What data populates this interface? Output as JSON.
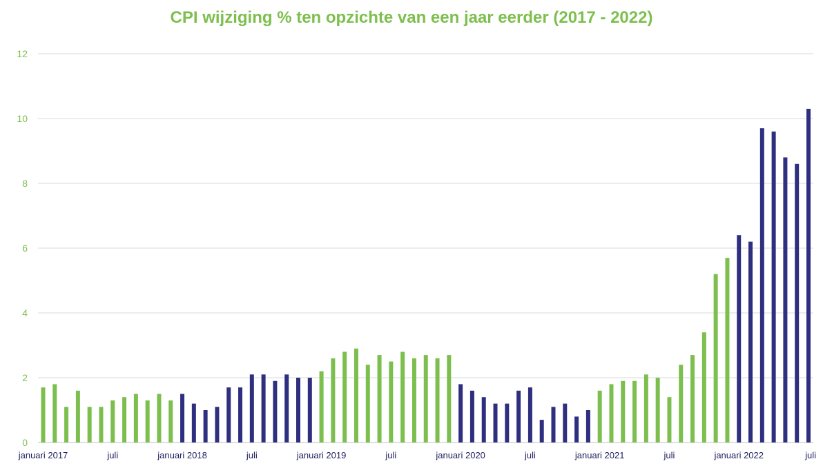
{
  "chart_data": {
    "type": "bar",
    "title": "CPI wijziging % ten opzichte van een jaar eerder (2017 - 2022)",
    "xlabel": "",
    "ylabel": "",
    "ylim": [
      0,
      12
    ],
    "yticks": [
      0,
      2,
      4,
      6,
      8,
      10,
      12
    ],
    "grid": true,
    "legend": "none",
    "colors": {
      "green": "#7dbf4e",
      "navy": "#2e2f7f",
      "grid": "#d9d9d9"
    },
    "x_tick_labels": [
      {
        "index": 0,
        "label": "januari 2017"
      },
      {
        "index": 6,
        "label": "juli"
      },
      {
        "index": 12,
        "label": "januari 2018"
      },
      {
        "index": 18,
        "label": "juli"
      },
      {
        "index": 24,
        "label": "januari 2019"
      },
      {
        "index": 30,
        "label": "juli"
      },
      {
        "index": 36,
        "label": "januari 2020"
      },
      {
        "index": 42,
        "label": "juli"
      },
      {
        "index": 48,
        "label": "januari 2021"
      },
      {
        "index": 54,
        "label": "juli"
      },
      {
        "index": 60,
        "label": "januari 2022"
      },
      {
        "index": 66,
        "label": "juli"
      }
    ],
    "values": [
      1.7,
      1.8,
      1.1,
      1.6,
      1.1,
      1.1,
      1.3,
      1.4,
      1.5,
      1.3,
      1.5,
      1.3,
      1.5,
      1.2,
      1.0,
      1.1,
      1.7,
      1.7,
      2.1,
      2.1,
      1.9,
      2.1,
      2.0,
      2.0,
      2.2,
      2.6,
      2.8,
      2.9,
      2.4,
      2.7,
      2.5,
      2.8,
      2.6,
      2.7,
      2.6,
      2.7,
      1.8,
      1.6,
      1.4,
      1.2,
      1.2,
      1.6,
      1.7,
      0.7,
      1.1,
      1.2,
      0.8,
      1.0,
      1.6,
      1.8,
      1.9,
      1.9,
      2.1,
      2.0,
      1.4,
      2.4,
      2.7,
      3.4,
      5.2,
      5.7,
      6.4,
      6.2,
      9.7,
      9.6,
      8.8,
      8.6,
      10.3
    ],
    "bar_colors": [
      "green",
      "green",
      "green",
      "green",
      "green",
      "green",
      "green",
      "green",
      "green",
      "green",
      "green",
      "green",
      "navy",
      "navy",
      "navy",
      "navy",
      "navy",
      "navy",
      "navy",
      "navy",
      "navy",
      "navy",
      "navy",
      "navy",
      "green",
      "green",
      "green",
      "green",
      "green",
      "green",
      "green",
      "green",
      "green",
      "green",
      "green",
      "green",
      "navy",
      "navy",
      "navy",
      "navy",
      "navy",
      "navy",
      "navy",
      "navy",
      "navy",
      "navy",
      "navy",
      "navy",
      "green",
      "green",
      "green",
      "green",
      "green",
      "green",
      "green",
      "green",
      "green",
      "green",
      "green",
      "green",
      "navy",
      "navy",
      "navy",
      "navy",
      "navy",
      "navy",
      "navy"
    ]
  }
}
